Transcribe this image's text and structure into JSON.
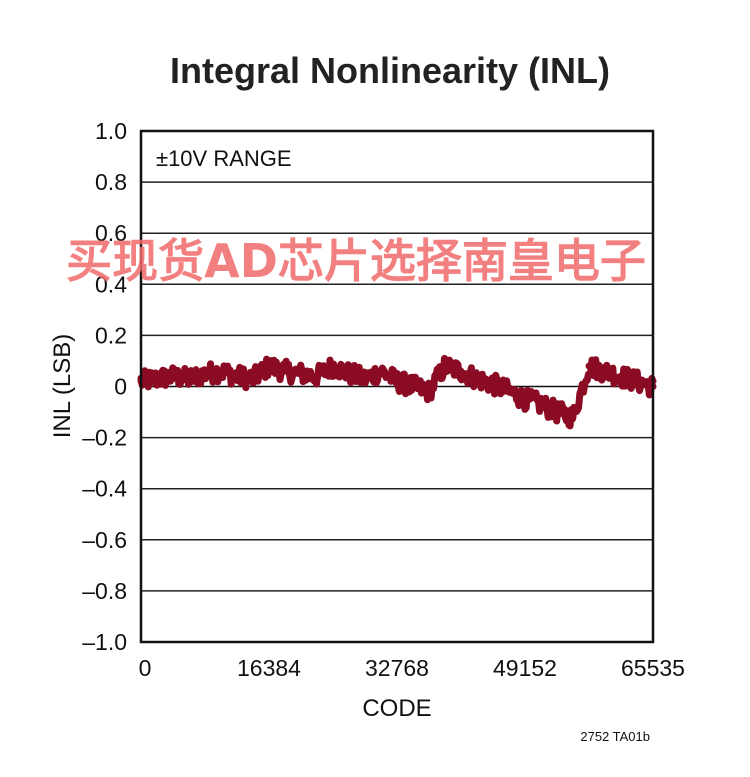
{
  "figure_id": "2752 TA01b",
  "watermark": "买现货AD芯片选择南皇电子",
  "colors": {
    "series": "#8b0b25",
    "grid": "#222222",
    "watermark": "#f26a6a"
  },
  "chart_data": {
    "type": "line",
    "title": "Integral Nonlinearity (INL)",
    "xlabel": "CODE",
    "ylabel": "INL (LSB)",
    "annotation": "±10V RANGE",
    "xlim": [
      0,
      65535
    ],
    "ylim": [
      -1.0,
      1.0
    ],
    "x_ticks": [
      0,
      16384,
      32768,
      49152,
      65535
    ],
    "x_tick_labels": [
      "0",
      "16384",
      "32768",
      "49152",
      "65535"
    ],
    "y_ticks": [
      1.0,
      0.8,
      0.6,
      0.4,
      0.2,
      0,
      -0.2,
      -0.4,
      -0.6,
      -0.8,
      -1.0
    ],
    "y_tick_labels": [
      "1.0",
      "0.8",
      "0.6",
      "0.4",
      "0.2",
      "0",
      "–0.2",
      "–0.4",
      "–0.6",
      "–0.8",
      "–1.0"
    ],
    "grid": true,
    "series": [
      {
        "x": [
          0,
          2048,
          4096,
          6144,
          8192,
          10240,
          12288,
          14336,
          16384,
          18432,
          20480,
          22528,
          24576,
          26624,
          28672,
          30720,
          32768,
          34816,
          36864,
          38912,
          40960,
          43008,
          45056,
          47104,
          49152,
          51200,
          53248,
          55296,
          57344,
          59392,
          61440,
          63488,
          65535
        ],
        "y": [
          0.02,
          0.03,
          0.04,
          0.03,
          0.05,
          0.06,
          0.04,
          0.03,
          0.08,
          0.06,
          0.05,
          0.04,
          0.08,
          0.05,
          0.03,
          0.06,
          0.02,
          0.0,
          -0.02,
          0.08,
          0.06,
          0.03,
          0.01,
          -0.02,
          -0.05,
          -0.07,
          -0.1,
          -0.12,
          0.08,
          0.06,
          0.04,
          0.02,
          0.0
        ],
        "band": 0.04
      }
    ]
  }
}
